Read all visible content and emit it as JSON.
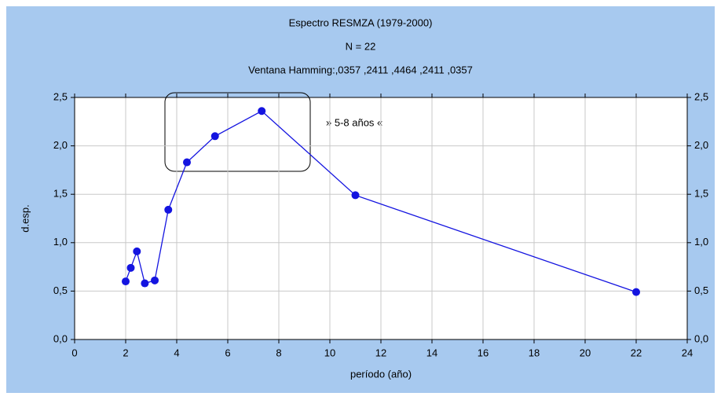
{
  "chart_data": {
    "type": "line",
    "title": "Espectro RESMZA (1979-2000)",
    "subtitle": "N = 22",
    "caption": "Ventana Hamming:,0357 ,2411 ,4464 ,2411 ,0357",
    "x_label": "período (año)",
    "y_label": "d.esp.",
    "annotation": "» 5-8 años «",
    "x": [
      2.0,
      2.2,
      2.44,
      2.75,
      3.14,
      3.67,
      4.4,
      5.5,
      7.33,
      11.0,
      22.0
    ],
    "series": [
      {
        "color": "#1414e0",
        "values": [
          0.6,
          0.74,
          0.91,
          0.58,
          0.61,
          1.34,
          1.83,
          2.1,
          2.36,
          1.49,
          0.49
        ]
      }
    ],
    "xlim": [
      0,
      24
    ],
    "xticks": [
      0,
      2,
      4,
      6,
      8,
      10,
      12,
      14,
      16,
      18,
      20,
      22,
      24
    ],
    "ylim": [
      0,
      2.5
    ],
    "yticks": [
      {
        "value": 0,
        "label": "0,0"
      },
      {
        "value": 0.5,
        "label": "0,5"
      },
      {
        "value": 1,
        "label": "1,0"
      },
      {
        "value": 1.5,
        "label": "1,5"
      },
      {
        "value": 2,
        "label": "2,0"
      },
      {
        "value": 2.5,
        "label": "2,5"
      }
    ],
    "grid": true
  }
}
